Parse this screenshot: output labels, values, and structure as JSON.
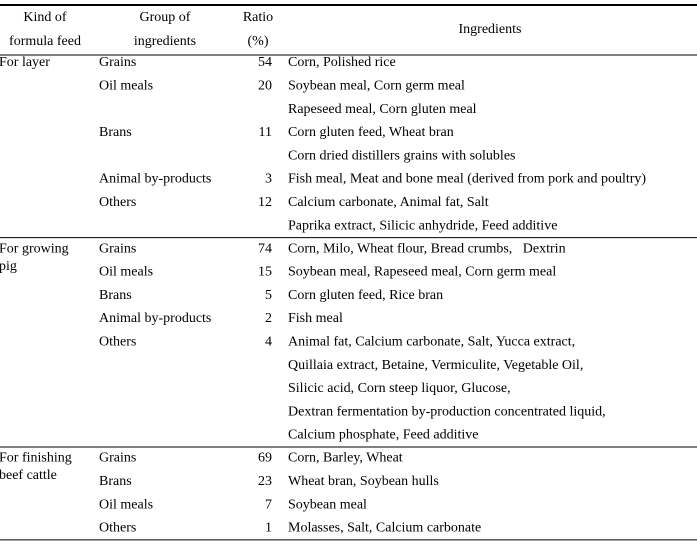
{
  "table": {
    "header": [
      [
        "Kind of",
        "formula feed"
      ],
      [
        "Group of",
        "ingredients"
      ],
      [
        "Ratio",
        "(%)"
      ],
      [
        "Ingredients"
      ]
    ],
    "sections": [
      {
        "kind": [
          "For layer"
        ],
        "rows": [
          {
            "group": "Grains",
            "ratio": 54,
            "ingredients": [
              "Corn, Polished rice"
            ]
          },
          {
            "group": "Oil meals",
            "ratio": 20,
            "ingredients": [
              "Soybean meal, Corn germ meal",
              "Rapeseed meal, Corn gluten meal"
            ]
          },
          {
            "group": "Brans",
            "ratio": 11,
            "ingredients": [
              "Corn gluten feed, Wheat bran",
              "Corn dried distillers grains with solubles"
            ]
          },
          {
            "group": "Animal by-products",
            "ratio": 3,
            "ingredients": [
              "Fish meal, Meat and bone meal (derived from pork and poultry)"
            ]
          },
          {
            "group": "Others",
            "ratio": 12,
            "ingredients": [
              "Calcium carbonate, Animal fat, Salt",
              "Paprika extract, Silicic anhydride, Feed additive"
            ]
          }
        ]
      },
      {
        "kind": [
          "For growing",
          "pig"
        ],
        "rows": [
          {
            "group": "Grains",
            "ratio": 74,
            "ingredients": [
              "Corn, Milo, Wheat flour, Bread crumbs,   Dextrin"
            ]
          },
          {
            "group": "Oil meals",
            "ratio": 15,
            "ingredients": [
              "Soybean meal, Rapeseed meal, Corn germ meal"
            ]
          },
          {
            "group": "Brans",
            "ratio": 5,
            "ingredients": [
              "Corn gluten feed, Rice bran"
            ]
          },
          {
            "group": "Animal by-products",
            "ratio": 2,
            "ingredients": [
              "Fish meal"
            ]
          },
          {
            "group": "Others",
            "ratio": 4,
            "ingredients": [
              "Animal fat, Calcium carbonate, Salt, Yucca extract,",
              "Quillaia extract, Betaine, Vermiculite, Vegetable Oil,",
              "Silicic acid, Corn steep liquor, Glucose,",
              "Dextran fermentation by-production concentrated liquid,",
              "Calcium phosphate, Feed additive"
            ]
          }
        ]
      },
      {
        "kind": [
          "For finishing",
          "beef cattle"
        ],
        "rows": [
          {
            "group": "Grains",
            "ratio": 69,
            "ingredients": [
              "Corn, Barley, Wheat"
            ]
          },
          {
            "group": "Brans",
            "ratio": 23,
            "ingredients": [
              "Wheat bran, Soybean hulls"
            ]
          },
          {
            "group": "Oil meals",
            "ratio": 7,
            "ingredients": [
              "Soybean meal"
            ]
          },
          {
            "group": "Others",
            "ratio": 1,
            "ingredients": [
              "Molasses, Salt, Calcium carbonate"
            ]
          }
        ]
      }
    ]
  }
}
